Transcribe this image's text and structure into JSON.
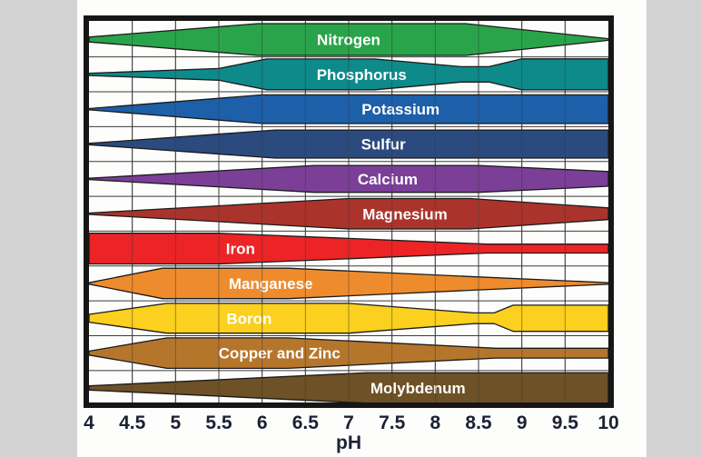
{
  "chart_data": {
    "type": "area",
    "title": "",
    "xlabel": "pH",
    "x_range": [
      4,
      10
    ],
    "x_ticks": [
      4,
      4.5,
      5,
      5.5,
      6,
      6.5,
      7,
      7.5,
      8,
      8.5,
      9,
      9.5,
      10
    ],
    "grid": "on",
    "description": "Relative plant nutrient availability versus soil pH; the thickness of each colored band (availability 0-1) shows how available that nutrient is at a given pH.",
    "series": [
      {
        "name": "Nitrogen",
        "color": "#2aa44b",
        "label_ph": 7.0,
        "points": [
          {
            "ph": 4,
            "a": 0.15
          },
          {
            "ph": 5.95,
            "a": 0.97
          },
          {
            "ph": 8.35,
            "a": 0.97
          },
          {
            "ph": 10,
            "a": 0.05
          }
        ]
      },
      {
        "name": "Phosphorus",
        "color": "#0e8a8a",
        "label_ph": 7.15,
        "points": [
          {
            "ph": 4,
            "a": 0.07
          },
          {
            "ph": 5.5,
            "a": 0.36
          },
          {
            "ph": 6.05,
            "a": 0.94
          },
          {
            "ph": 7.3,
            "a": 0.94
          },
          {
            "ph": 8.3,
            "a": 0.47
          },
          {
            "ph": 8.62,
            "a": 0.47
          },
          {
            "ph": 9.0,
            "a": 0.95
          },
          {
            "ph": 10,
            "a": 0.95
          }
        ]
      },
      {
        "name": "Potassium",
        "color": "#1d5fa8",
        "label_ph": 7.6,
        "points": [
          {
            "ph": 4,
            "a": 0.04
          },
          {
            "ph": 6.0,
            "a": 0.88
          },
          {
            "ph": 10,
            "a": 0.88
          }
        ]
      },
      {
        "name": "Sulfur",
        "color": "#2b4a7e",
        "label_ph": 7.4,
        "points": [
          {
            "ph": 4,
            "a": 0.04
          },
          {
            "ph": 6.15,
            "a": 0.86
          },
          {
            "ph": 10,
            "a": 0.86
          }
        ]
      },
      {
        "name": "Calcium",
        "color": "#7b3f98",
        "label_ph": 7.45,
        "points": [
          {
            "ph": 4,
            "a": 0.04
          },
          {
            "ph": 6.6,
            "a": 0.82
          },
          {
            "ph": 8.5,
            "a": 0.82
          },
          {
            "ph": 10,
            "a": 0.45
          }
        ]
      },
      {
        "name": "Magnesium",
        "color": "#aa342c",
        "label_ph": 7.65,
        "points": [
          {
            "ph": 4,
            "a": 0.04
          },
          {
            "ph": 7.0,
            "a": 0.93
          },
          {
            "ph": 8.4,
            "a": 0.93
          },
          {
            "ph": 10,
            "a": 0.36
          }
        ]
      },
      {
        "name": "Iron",
        "color": "#ec2426",
        "label_ph": 5.75,
        "points": [
          {
            "ph": 4,
            "a": 0.94
          },
          {
            "ph": 5.5,
            "a": 0.94
          },
          {
            "ph": 7.0,
            "a": 0.62
          },
          {
            "ph": 8.6,
            "a": 0.27
          },
          {
            "ph": 10,
            "a": 0.27
          }
        ]
      },
      {
        "name": "Manganese",
        "color": "#ee8c2d",
        "label_ph": 6.1,
        "points": [
          {
            "ph": 4,
            "a": 0.04
          },
          {
            "ph": 4.85,
            "a": 0.93
          },
          {
            "ph": 6.3,
            "a": 0.93
          },
          {
            "ph": 8.5,
            "a": 0.4
          },
          {
            "ph": 10,
            "a": 0.05
          }
        ]
      },
      {
        "name": "Boron",
        "color": "#fbd01e",
        "label_ph": 5.85,
        "points": [
          {
            "ph": 4,
            "a": 0.24
          },
          {
            "ph": 4.9,
            "a": 0.91
          },
          {
            "ph": 7.0,
            "a": 0.91
          },
          {
            "ph": 8.45,
            "a": 0.33
          },
          {
            "ph": 8.68,
            "a": 0.33
          },
          {
            "ph": 8.9,
            "a": 0.8
          },
          {
            "ph": 10,
            "a": 0.8
          }
        ]
      },
      {
        "name": "Copper and Zinc",
        "color": "#b5762c",
        "label_ph": 6.2,
        "points": [
          {
            "ph": 4,
            "a": 0.12
          },
          {
            "ph": 4.9,
            "a": 0.93
          },
          {
            "ph": 6.3,
            "a": 0.93
          },
          {
            "ph": 8.7,
            "a": 0.3
          },
          {
            "ph": 10,
            "a": 0.3
          }
        ]
      },
      {
        "name": "Molybdenum",
        "color": "#6e5126",
        "label_ph": 7.8,
        "points": [
          {
            "ph": 4,
            "a": 0.13
          },
          {
            "ph": 7.2,
            "a": 0.93
          },
          {
            "ph": 10,
            "a": 0.93
          }
        ]
      }
    ]
  },
  "colors": {
    "background": "#d2d2d3",
    "paper": "#fdfdfc",
    "grid": "#3b3b3b",
    "plot_border": "#161616",
    "band_outline": "#1b1b1b",
    "tick_text": "#1c2133",
    "band_label_text": "#ffffff"
  }
}
